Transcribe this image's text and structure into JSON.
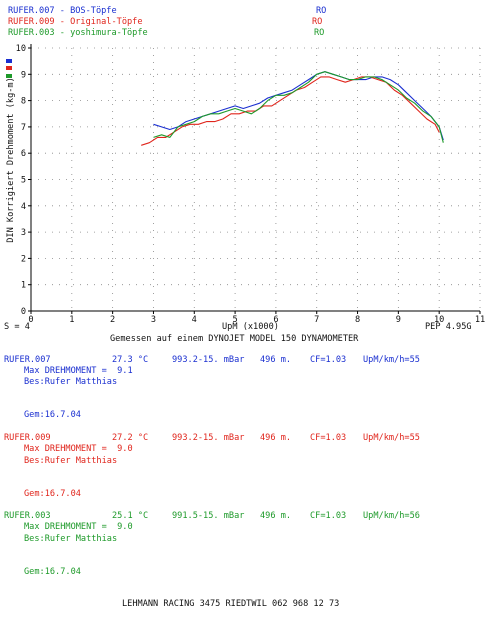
{
  "header": [
    {
      "name": "RUFER.007 - BOS-Töpfe",
      "tag": "RO"
    },
    {
      "name": "RUFER.009 - Original-Töpfe",
      "tag": "RO"
    },
    {
      "name": "RUFER.003 - yoshimura-Töpfe",
      "tag": "RO"
    }
  ],
  "chart_data": {
    "type": "line",
    "ylabel": "DIN Korrigiert Drehmoment (kg-m)",
    "xlabel": "UpM (x1000)",
    "xlim": [
      0,
      11
    ],
    "ylim": [
      0,
      10
    ],
    "x_ticks": [
      "0",
      "1",
      "2",
      "3",
      "4",
      "5",
      "6",
      "7",
      "8",
      "9",
      "10",
      "11"
    ],
    "y_ticks": [
      "0",
      "1",
      "2",
      "3",
      "4",
      "5",
      "6",
      "7",
      "8",
      "9",
      "10"
    ],
    "grid": true,
    "series": [
      {
        "name": "RUFER.007 - BOS-Töpfe",
        "color": "#1a2fd0",
        "x": [
          3.0,
          3.2,
          3.4,
          3.6,
          3.8,
          4.0,
          4.2,
          4.4,
          4.6,
          4.8,
          5.0,
          5.2,
          5.4,
          5.6,
          5.8,
          6.0,
          6.2,
          6.4,
          6.6,
          6.8,
          7.0,
          7.2,
          7.4,
          7.6,
          7.8,
          8.0,
          8.2,
          8.4,
          8.6,
          8.8,
          9.0,
          9.2,
          9.4,
          9.6,
          9.8,
          10.0,
          10.1
        ],
        "y": [
          7.1,
          7.0,
          6.9,
          7.0,
          7.2,
          7.3,
          7.4,
          7.5,
          7.6,
          7.7,
          7.8,
          7.7,
          7.8,
          7.9,
          8.1,
          8.2,
          8.3,
          8.4,
          8.6,
          8.8,
          9.0,
          9.1,
          9.0,
          8.9,
          8.8,
          8.8,
          8.8,
          8.9,
          8.9,
          8.8,
          8.6,
          8.3,
          8.0,
          7.7,
          7.4,
          7.0,
          6.5
        ]
      },
      {
        "name": "RUFER.009 - Original-Töpfe",
        "color": "#e0251c",
        "x": [
          2.7,
          2.9,
          3.1,
          3.3,
          3.5,
          3.7,
          3.9,
          4.1,
          4.3,
          4.5,
          4.7,
          4.9,
          5.1,
          5.3,
          5.5,
          5.7,
          5.9,
          6.1,
          6.3,
          6.5,
          6.7,
          6.9,
          7.1,
          7.3,
          7.5,
          7.7,
          7.9,
          8.1,
          8.3,
          8.5,
          8.7,
          8.9,
          9.1,
          9.3,
          9.5,
          9.7,
          9.9,
          10.0
        ],
        "y": [
          6.3,
          6.4,
          6.6,
          6.6,
          6.8,
          7.0,
          7.1,
          7.1,
          7.2,
          7.2,
          7.3,
          7.5,
          7.5,
          7.6,
          7.6,
          7.8,
          7.8,
          8.0,
          8.2,
          8.4,
          8.5,
          8.7,
          8.9,
          8.9,
          8.8,
          8.7,
          8.8,
          8.9,
          8.9,
          8.8,
          8.7,
          8.4,
          8.2,
          7.9,
          7.6,
          7.3,
          7.1,
          6.8
        ]
      },
      {
        "name": "RUFER.003 - yoshimura-Töpfe",
        "color": "#1e9a2a",
        "x": [
          3.0,
          3.2,
          3.4,
          3.6,
          3.8,
          4.0,
          4.2,
          4.4,
          4.6,
          4.8,
          5.0,
          5.2,
          5.4,
          5.6,
          5.8,
          6.0,
          6.2,
          6.4,
          6.6,
          6.8,
          7.0,
          7.2,
          7.4,
          7.6,
          7.8,
          8.0,
          8.2,
          8.4,
          8.6,
          8.8,
          9.0,
          9.2,
          9.4,
          9.6,
          9.8,
          10.0,
          10.1
        ],
        "y": [
          6.6,
          6.7,
          6.6,
          7.0,
          7.1,
          7.2,
          7.4,
          7.5,
          7.5,
          7.6,
          7.7,
          7.6,
          7.5,
          7.7,
          8.0,
          8.2,
          8.2,
          8.3,
          8.5,
          8.7,
          9.0,
          9.1,
          9.0,
          8.9,
          8.8,
          8.8,
          8.9,
          8.9,
          8.8,
          8.6,
          8.4,
          8.1,
          7.9,
          7.6,
          7.4,
          7.0,
          6.4
        ]
      }
    ]
  },
  "footer_row": {
    "left": "S = 4",
    "pep": "PEP 4.95G"
  },
  "subtitle": "Gemessen auf einem DYNOJET MODEL 150 DYNAMOMETER",
  "records": [
    {
      "id": "RUFER.007",
      "temp": "27.3 °C",
      "pressure": "993.2-15. mBar",
      "alt": "496 m.",
      "cf": "CF=1.03",
      "ratio": "UpM/km/h=55",
      "max": "Max DREHMOMENT =  9.1",
      "bes": "Bes:Rufer Matthias",
      "gem": "Gem:16.7.04"
    },
    {
      "id": "RUFER.009",
      "temp": "27.2 °C",
      "pressure": "993.2-15. mBar",
      "alt": "496 m.",
      "cf": "CF=1.03",
      "ratio": "UpM/km/h=55",
      "max": "Max DREHMOMENT =  9.0",
      "bes": "Bes:Rufer Matthias",
      "gem": "Gem:16.7.04"
    },
    {
      "id": "RUFER.003",
      "temp": "25.1 °C",
      "pressure": "991.5-15. mBar",
      "alt": "496 m.",
      "cf": "CF=1.03",
      "ratio": "UpM/km/h=56",
      "max": "Max DREHMOMENT =  9.0",
      "bes": "Bes:Rufer Matthias",
      "gem": "Gem:16.7.04"
    }
  ],
  "bottom_line": "LEHMANN RACING 3475 RIEDTWIL 062 968 12 73"
}
